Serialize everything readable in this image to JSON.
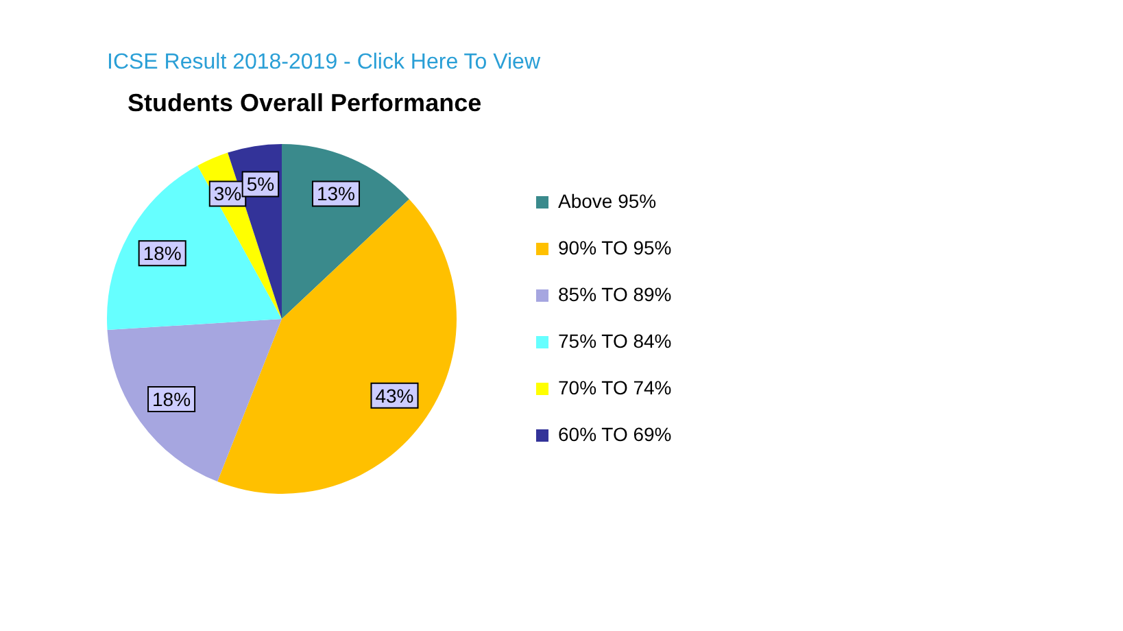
{
  "chart_data": {
    "type": "pie",
    "title": "Students Overall Performance",
    "annotations": [
      "ICSE Result 2018-2019 - Click Here To View"
    ],
    "categories": [
      "Above 95%",
      "90% TO 95%",
      "85% TO 89%",
      "75% TO 84%",
      "70% TO 74%",
      "60% TO 69%"
    ],
    "values": [
      13,
      43,
      18,
      18,
      3,
      5
    ],
    "colors": [
      "#3a8a8c",
      "#ffc000",
      "#a6a6e0",
      "#66ffff",
      "#ffff00",
      "#333399"
    ],
    "value_labels": [
      "13%",
      "43%",
      "18%",
      "18%",
      "3%",
      "5%"
    ],
    "legend": "right"
  }
}
